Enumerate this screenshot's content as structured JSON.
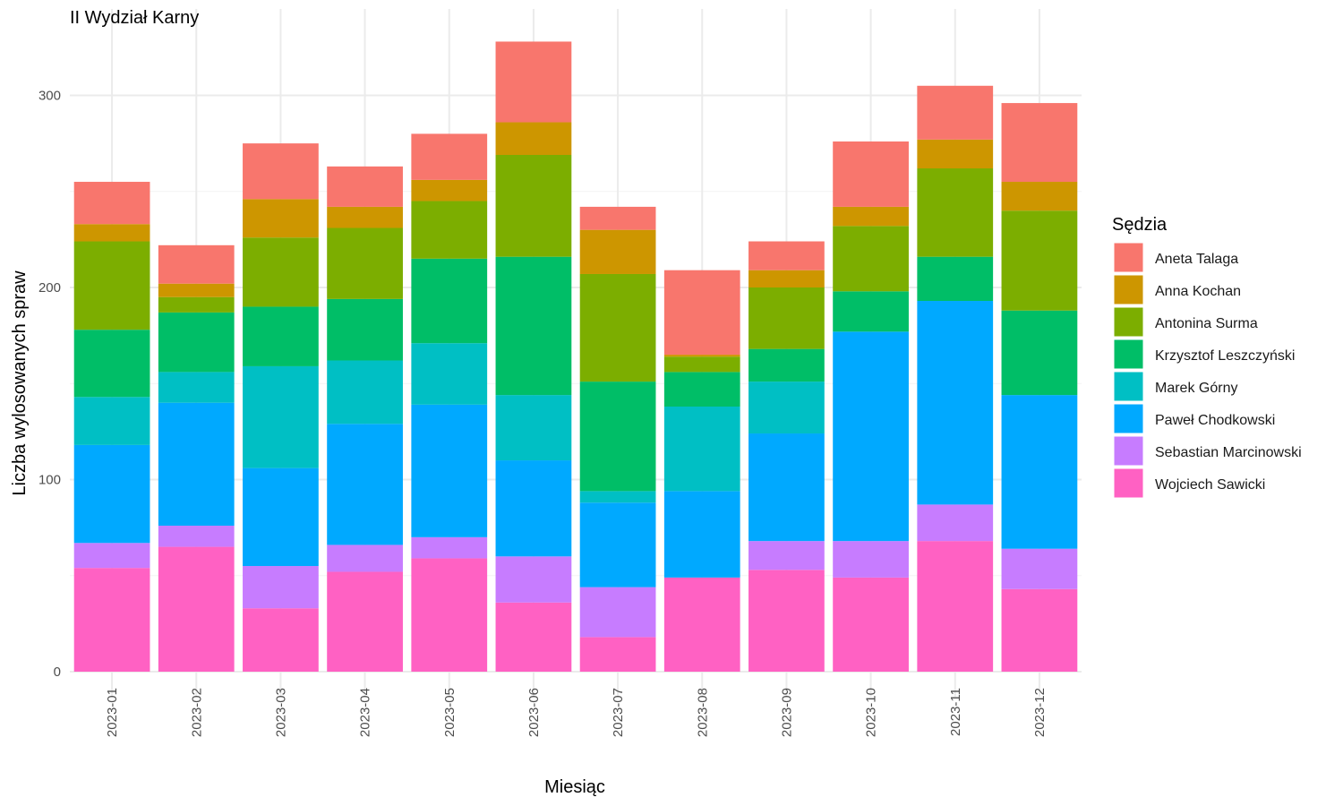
{
  "chart_data": {
    "type": "bar",
    "stacked": true,
    "title": "II Wydział Karny",
    "xlabel": "Miesiąc",
    "ylabel": "Liczba wylosowanych spraw",
    "ylim": [
      0,
      335
    ],
    "yticks": [
      0,
      100,
      200,
      300
    ],
    "grid": true,
    "legend": {
      "title": "Sędzia",
      "position": "right"
    },
    "categories": [
      "2023-01",
      "2023-02",
      "2023-03",
      "2023-04",
      "2023-05",
      "2023-06",
      "2023-07",
      "2023-08",
      "2023-09",
      "2023-10",
      "2023-11",
      "2023-12"
    ],
    "series": [
      {
        "name": "Wojciech Sawicki",
        "color": "#FF61C3",
        "values": [
          54,
          65,
          33,
          52,
          59,
          36,
          18,
          49,
          53,
          49,
          68,
          43
        ]
      },
      {
        "name": "Sebastian Marcinowski",
        "color": "#C77CFF",
        "values": [
          13,
          11,
          22,
          14,
          11,
          24,
          26,
          0,
          15,
          19,
          19,
          21
        ]
      },
      {
        "name": "Paweł Chodkowski",
        "color": "#00A9FF",
        "values": [
          51,
          64,
          51,
          63,
          69,
          50,
          44,
          45,
          56,
          109,
          106,
          80
        ]
      },
      {
        "name": "Marek Górny",
        "color": "#00BFC4",
        "values": [
          25,
          16,
          53,
          33,
          32,
          34,
          6,
          44,
          27,
          0,
          0,
          0
        ]
      },
      {
        "name": "Krzysztof Leszczyński",
        "color": "#00BE67",
        "values": [
          35,
          31,
          31,
          32,
          44,
          72,
          57,
          18,
          17,
          21,
          23,
          44
        ]
      },
      {
        "name": "Antonina Surma",
        "color": "#7CAE00",
        "values": [
          46,
          8,
          36,
          37,
          30,
          53,
          56,
          8,
          32,
          34,
          46,
          52
        ]
      },
      {
        "name": "Anna Kochan",
        "color": "#CD9600",
        "values": [
          9,
          7,
          20,
          11,
          11,
          17,
          23,
          1,
          9,
          10,
          15,
          15
        ]
      },
      {
        "name": "Aneta Talaga",
        "color": "#F8766D",
        "values": [
          22,
          20,
          29,
          21,
          24,
          42,
          12,
          44,
          15,
          34,
          28,
          41
        ]
      }
    ],
    "legend_order": [
      "Aneta Talaga",
      "Anna Kochan",
      "Antonina Surma",
      "Krzysztof Leszczyński",
      "Marek Górny",
      "Paweł Chodkowski",
      "Sebastian Marcinowski",
      "Wojciech Sawicki"
    ]
  }
}
